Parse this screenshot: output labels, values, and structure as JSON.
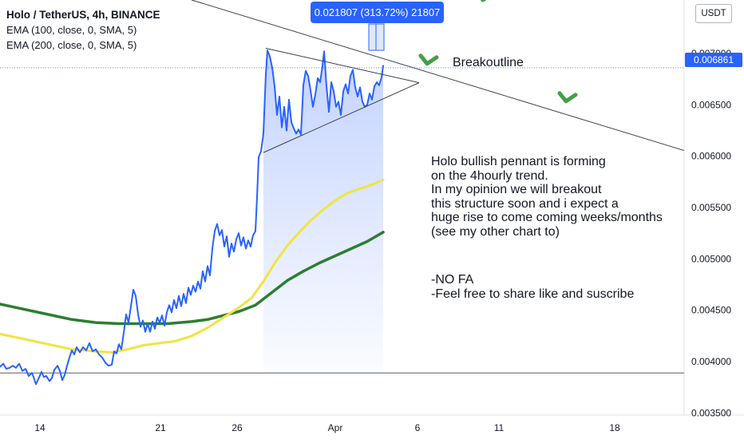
{
  "legend": {
    "title": "Holo / TetherUS, 4h, BINANCE",
    "line1": "EMA (100, close, 0, SMA, 5)",
    "line2": "EMA (200, close, 0, SMA, 5)"
  },
  "currency_button": "USDT",
  "measure_label": "0.021807 (313.72%) 21807",
  "last_price": "0.006861",
  "annotations": {
    "breakout": "Breakoutline",
    "note": "Holo bullish pennant is forming\non the 4hourly trend.\nIn my opinion we will breakout\nthis structure soon and i expect a\nhuge rise to come coming weeks/months\n(see my other chart to)",
    "note2": "-NO FA\n-Feel free to share like and suscribe"
  },
  "colors": {
    "price": "#2962ff",
    "ema100": "#f0e442",
    "ema200": "#2e7d32",
    "arrow": "#43a047",
    "fill": "#2962ff"
  },
  "chart_data": {
    "type": "line",
    "x_ticks": [
      "14",
      "21",
      "26",
      "Apr",
      "6",
      "11",
      "18"
    ],
    "y_ticks": [
      "0.003500",
      "0.004000",
      "0.004500",
      "0.005000",
      "0.005500",
      "0.006000",
      "0.006500",
      "0.007000"
    ],
    "ylim": [
      0.00348,
      0.00752
    ],
    "series": [
      {
        "key": "price",
        "values": [
          [
            0,
            0.00395
          ],
          [
            4,
            0.00398
          ],
          [
            8,
            0.00393
          ],
          [
            12,
            0.00394
          ],
          [
            16,
            0.00396
          ],
          [
            20,
            0.00394
          ],
          [
            24,
            0.00398
          ],
          [
            28,
            0.00391
          ],
          [
            32,
            0.00393
          ],
          [
            36,
            0.00386
          ],
          [
            40,
            0.00389
          ],
          [
            42,
            0.00385
          ],
          [
            45,
            0.00378
          ],
          [
            48,
            0.00383
          ],
          [
            52,
            0.0039
          ],
          [
            55,
            0.00385
          ],
          [
            58,
            0.00386
          ],
          [
            62,
            0.00381
          ],
          [
            65,
            0.00384
          ],
          [
            68,
            0.00392
          ],
          [
            72,
            0.00396
          ],
          [
            75,
            0.00391
          ],
          [
            78,
            0.00382
          ],
          [
            81,
            0.00387
          ],
          [
            84,
            0.00396
          ],
          [
            87,
            0.00404
          ],
          [
            90,
            0.00411
          ],
          [
            93,
            0.00407
          ],
          [
            96,
            0.00414
          ],
          [
            100,
            0.00409
          ],
          [
            104,
            0.00414
          ],
          [
            108,
            0.00411
          ],
          [
            112,
            0.00418
          ],
          [
            116,
            0.0041
          ],
          [
            120,
            0.00412
          ],
          [
            124,
            0.00407
          ],
          [
            128,
            0.00404
          ],
          [
            132,
            0.00399
          ],
          [
            136,
            0.00396
          ],
          [
            140,
            0.00397
          ],
          [
            143,
            0.0041
          ],
          [
            146,
            0.00408
          ],
          [
            149,
            0.00417
          ],
          [
            152,
            0.00412
          ],
          [
            155,
            0.00428
          ],
          [
            158,
            0.00446
          ],
          [
            161,
            0.00438
          ],
          [
            164,
            0.00454
          ],
          [
            167,
            0.0047
          ],
          [
            170,
            0.00464
          ],
          [
            173,
            0.00446
          ],
          [
            176,
            0.00434
          ],
          [
            179,
            0.0044
          ],
          [
            182,
            0.00429
          ],
          [
            185,
            0.00437
          ],
          [
            188,
            0.00429
          ],
          [
            191,
            0.00439
          ],
          [
            194,
            0.00432
          ],
          [
            197,
            0.00443
          ],
          [
            200,
            0.00438
          ],
          [
            203,
            0.00445
          ],
          [
            206,
            0.00435
          ],
          [
            209,
            0.00448
          ],
          [
            212,
            0.00455
          ],
          [
            215,
            0.00448
          ],
          [
            218,
            0.0046
          ],
          [
            221,
            0.00452
          ],
          [
            224,
            0.00464
          ],
          [
            227,
            0.00454
          ],
          [
            230,
            0.00466
          ],
          [
            233,
            0.00457
          ],
          [
            236,
            0.00472
          ],
          [
            239,
            0.00465
          ],
          [
            242,
            0.00474
          ],
          [
            245,
            0.00468
          ],
          [
            248,
            0.00478
          ],
          [
            251,
            0.00471
          ],
          [
            254,
            0.00488
          ],
          [
            257,
            0.00478
          ],
          [
            260,
            0.00493
          ],
          [
            263,
            0.00484
          ],
          [
            266,
            0.0051
          ],
          [
            269,
            0.00527
          ],
          [
            272,
            0.00534
          ],
          [
            275,
            0.00523
          ],
          [
            278,
            0.00528
          ],
          [
            281,
            0.00512
          ],
          [
            284,
            0.00522
          ],
          [
            287,
            0.00502
          ],
          [
            290,
            0.00515
          ],
          [
            293,
            0.00507
          ],
          [
            296,
            0.00519
          ],
          [
            299,
            0.00525
          ],
          [
            302,
            0.00513
          ],
          [
            305,
            0.00521
          ],
          [
            308,
            0.0051
          ],
          [
            311,
            0.00518
          ],
          [
            314,
            0.00512
          ],
          [
            317,
            0.00523
          ],
          [
            320,
            0.00527
          ],
          [
            322,
            0.0056
          ],
          [
            324,
            0.00599
          ],
          [
            327,
            0.00605
          ],
          [
            330,
            0.00622
          ],
          [
            333,
            0.0068
          ],
          [
            335,
            0.00703
          ],
          [
            338,
            0.00697
          ],
          [
            341,
            0.00686
          ],
          [
            344,
            0.00668
          ],
          [
            347,
            0.0064
          ],
          [
            350,
            0.00658
          ],
          [
            353,
            0.00628
          ],
          [
            356,
            0.00648
          ],
          [
            359,
            0.00625
          ],
          [
            362,
            0.00655
          ],
          [
            365,
            0.00633
          ],
          [
            368,
            0.00627
          ],
          [
            371,
            0.00622
          ],
          [
            374,
            0.00626
          ],
          [
            377,
            0.00621
          ],
          [
            380,
            0.00669
          ],
          [
            383,
            0.00683
          ],
          [
            386,
            0.00678
          ],
          [
            389,
            0.00664
          ],
          [
            392,
            0.00648
          ],
          [
            395,
            0.0066
          ],
          [
            398,
            0.00676
          ],
          [
            401,
            0.00672
          ],
          [
            404,
            0.00688
          ],
          [
            406,
            0.00702
          ],
          [
            409,
            0.00668
          ],
          [
            412,
            0.00643
          ],
          [
            415,
            0.00672
          ],
          [
            418,
            0.00663
          ],
          [
            421,
            0.00648
          ],
          [
            424,
            0.00653
          ],
          [
            427,
            0.0064
          ],
          [
            430,
            0.00663
          ],
          [
            433,
            0.0067
          ],
          [
            436,
            0.00661
          ],
          [
            439,
            0.00678
          ],
          [
            442,
            0.00684
          ],
          [
            445,
            0.00667
          ],
          [
            448,
            0.00658
          ],
          [
            451,
            0.00667
          ],
          [
            454,
            0.00653
          ],
          [
            457,
            0.00648
          ],
          [
            460,
            0.0065
          ],
          [
            463,
            0.00661
          ],
          [
            466,
            0.00655
          ],
          [
            469,
            0.00668
          ],
          [
            472,
            0.00672
          ],
          [
            475,
            0.00669
          ],
          [
            478,
            0.00677
          ],
          [
            480,
            0.00688
          ]
        ]
      },
      {
        "key": "ema100",
        "values": [
          [
            0,
            0.00427
          ],
          [
            30,
            0.00422
          ],
          [
            60,
            0.00417
          ],
          [
            90,
            0.00412
          ],
          [
            120,
            0.0041
          ],
          [
            140,
            0.00409
          ],
          [
            160,
            0.00412
          ],
          [
            180,
            0.00416
          ],
          [
            200,
            0.00418
          ],
          [
            220,
            0.0042
          ],
          [
            240,
            0.00425
          ],
          [
            260,
            0.00433
          ],
          [
            280,
            0.00443
          ],
          [
            300,
            0.00453
          ],
          [
            315,
            0.00462
          ],
          [
            330,
            0.00478
          ],
          [
            345,
            0.00497
          ],
          [
            360,
            0.00513
          ],
          [
            375,
            0.00526
          ],
          [
            390,
            0.00538
          ],
          [
            405,
            0.00548
          ],
          [
            420,
            0.00557
          ],
          [
            435,
            0.00564
          ],
          [
            450,
            0.00568
          ],
          [
            465,
            0.00572
          ],
          [
            480,
            0.00577
          ]
        ]
      },
      {
        "key": "ema200",
        "values": [
          [
            0,
            0.00456
          ],
          [
            30,
            0.00451
          ],
          [
            60,
            0.00446
          ],
          [
            90,
            0.00441
          ],
          [
            120,
            0.00438
          ],
          [
            150,
            0.00437
          ],
          [
            180,
            0.00437
          ],
          [
            210,
            0.00437
          ],
          [
            240,
            0.00439
          ],
          [
            260,
            0.00441
          ],
          [
            280,
            0.00445
          ],
          [
            300,
            0.00449
          ],
          [
            320,
            0.00455
          ],
          [
            340,
            0.00467
          ],
          [
            360,
            0.00479
          ],
          [
            380,
            0.00488
          ],
          [
            400,
            0.00496
          ],
          [
            420,
            0.00503
          ],
          [
            440,
            0.0051
          ],
          [
            460,
            0.00517
          ],
          [
            480,
            0.00526
          ]
        ]
      }
    ],
    "horizontal_lines": [
      0.00389
    ],
    "last_price_line": 0.006861,
    "trendlines": [
      {
        "key": "breakout",
        "from": [
          240,
          0.00752
        ],
        "to": [
          857,
          0.006055
        ]
      },
      {
        "key": "pennant-top",
        "from": [
          333,
          0.00705
        ],
        "to": [
          525,
          0.006715
        ]
      },
      {
        "key": "pennant-bottom",
        "from": [
          330,
          0.006035
        ],
        "to": [
          525,
          0.006715
        ]
      }
    ],
    "arrows": [
      {
        "key": "arrow-1",
        "at": [
          535,
          0.0069
        ]
      },
      {
        "key": "arrow-2",
        "at": [
          709,
          0.006535
        ]
      },
      {
        "key": "arrow-3",
        "at": [
          605,
          0.00752
        ]
      }
    ]
  }
}
